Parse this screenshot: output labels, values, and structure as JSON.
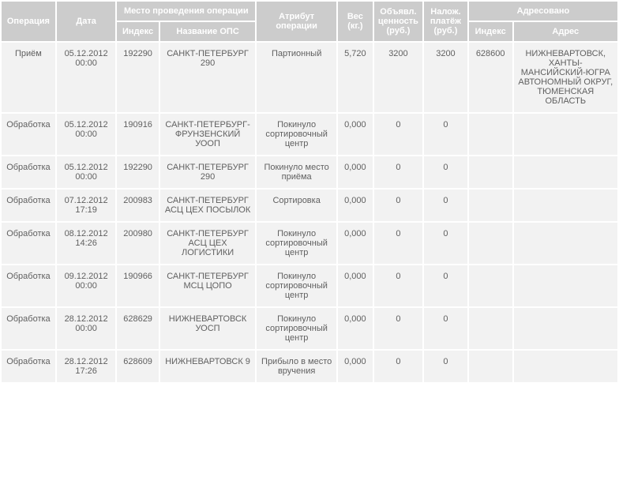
{
  "headers": {
    "operation": "Операция",
    "date": "Дата",
    "place_group": "Место проведения операции",
    "place_index": "Индекс",
    "place_name": "Название ОПС",
    "attribute": "Атрибут операции",
    "weight": "Вес (кг.)",
    "declared_value": "Объявл. ценность (руб.)",
    "cod": "Налож. платёж (руб.)",
    "addressed_group": "Адресовано",
    "addr_index": "Индекс",
    "addr_address": "Адрес"
  },
  "rows": [
    {
      "operation": "Приём",
      "date": "05.12.2012 00:00",
      "index": "192290",
      "ops_name": "САНКТ-ПЕТЕРБУРГ 290",
      "attribute": "Партионный",
      "weight": "5,720",
      "declared_value": "3200",
      "cod": "3200",
      "addr_index": "628600",
      "addr_address": "НИЖНЕВАРТОВСК, ХАНТЫ-МАНСИЙСКИЙ-ЮГРА АВТОНОМНЫЙ ОКРУГ, ТЮМЕНСКАЯ ОБЛАСТЬ"
    },
    {
      "operation": "Обработка",
      "date": "05.12.2012 00:00",
      "index": "190916",
      "ops_name": "САНКТ-ПЕТЕРБУРГ-ФРУНЗЕНСКИЙ УООП",
      "attribute": "Покинуло сортировочный центр",
      "weight": "0,000",
      "declared_value": "0",
      "cod": "0",
      "addr_index": "",
      "addr_address": ""
    },
    {
      "operation": "Обработка",
      "date": "05.12.2012 00:00",
      "index": "192290",
      "ops_name": "САНКТ-ПЕТЕРБУРГ 290",
      "attribute": "Покинуло место приёма",
      "weight": "0,000",
      "declared_value": "0",
      "cod": "0",
      "addr_index": "",
      "addr_address": ""
    },
    {
      "operation": "Обработка",
      "date": "07.12.2012 17:19",
      "index": "200983",
      "ops_name": "САНКТ-ПЕТЕРБУРГ АСЦ ЦЕХ ПОСЫЛОК",
      "attribute": "Сортировка",
      "weight": "0,000",
      "declared_value": "0",
      "cod": "0",
      "addr_index": "",
      "addr_address": ""
    },
    {
      "operation": "Обработка",
      "date": "08.12.2012 14:26",
      "index": "200980",
      "ops_name": "САНКТ-ПЕТЕРБУРГ АСЦ ЦЕХ ЛОГИСТИКИ",
      "attribute": "Покинуло сортировочный центр",
      "weight": "0,000",
      "declared_value": "0",
      "cod": "0",
      "addr_index": "",
      "addr_address": ""
    },
    {
      "operation": "Обработка",
      "date": "09.12.2012 00:00",
      "index": "190966",
      "ops_name": "САНКТ-ПЕТЕРБУРГ МСЦ ЦОПО",
      "attribute": "Покинуло сортировочный центр",
      "weight": "0,000",
      "declared_value": "0",
      "cod": "0",
      "addr_index": "",
      "addr_address": ""
    },
    {
      "operation": "Обработка",
      "date": "28.12.2012 00:00",
      "index": "628629",
      "ops_name": "НИЖНЕВАРТОВСК УОСП",
      "attribute": "Покинуло сортировочный центр",
      "weight": "0,000",
      "declared_value": "0",
      "cod": "0",
      "addr_index": "",
      "addr_address": ""
    },
    {
      "operation": "Обработка",
      "date": "28.12.2012 17:26",
      "index": "628609",
      "ops_name": "НИЖНЕВАРТОВСК 9",
      "attribute": "Прибыло в место вручения",
      "weight": "0,000",
      "declared_value": "0",
      "cod": "0",
      "addr_index": "",
      "addr_address": ""
    }
  ]
}
